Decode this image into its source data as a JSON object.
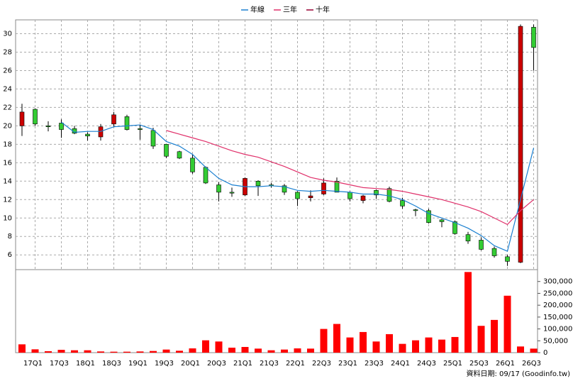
{
  "chart_data": {
    "type": "candlestick",
    "categories": [
      null,
      "17Q1",
      null,
      "17Q3",
      null,
      "18Q1",
      null,
      "18Q3",
      null,
      "19Q1",
      null,
      "19Q3",
      null,
      "20Q1",
      null,
      "20Q3",
      null,
      "21Q1",
      null,
      "21Q3",
      null,
      "22Q1",
      null,
      "22Q3",
      null,
      "23Q1",
      null,
      "23Q3",
      null,
      "24Q1",
      null,
      "24Q3",
      null,
      "25Q1",
      null,
      "25Q3",
      null,
      "26Q1",
      null,
      "26Q3"
    ],
    "open": [
      20.0,
      21.8,
      20.0,
      20.3,
      19.7,
      19.1,
      18.8,
      20.2,
      21.0,
      19.7,
      19.5,
      18.0,
      17.2,
      16.5,
      15.5,
      13.6,
      12.8,
      12.5,
      14.0,
      13.6,
      13.5,
      12.8,
      12.2,
      12.6,
      14.0,
      12.8,
      11.9,
      13.0,
      13.2,
      11.9,
      10.9,
      10.8,
      9.8,
      9.6,
      8.2,
      7.6,
      6.7,
      5.8,
      5.2,
      30.7
    ],
    "high": [
      22.4,
      21.9,
      20.5,
      20.7,
      20.0,
      19.3,
      20.2,
      21.5,
      21.2,
      20.1,
      19.8,
      18.0,
      17.3,
      16.9,
      15.6,
      13.9,
      13.3,
      14.4,
      14.1,
      13.8,
      13.7,
      12.9,
      13.0,
      14.3,
      14.4,
      12.9,
      12.5,
      13.1,
      13.4,
      12.2,
      11.0,
      11.0,
      9.9,
      9.7,
      8.5,
      7.9,
      6.9,
      6.0,
      31.0,
      31.0
    ],
    "low": [
      18.9,
      20.0,
      19.4,
      18.7,
      19.1,
      18.4,
      18.4,
      19.9,
      19.5,
      18.5,
      17.5,
      16.5,
      16.4,
      14.8,
      13.7,
      11.8,
      12.3,
      12.4,
      12.4,
      13.3,
      12.5,
      11.3,
      11.8,
      12.5,
      12.8,
      11.8,
      11.6,
      12.1,
      11.7,
      11.0,
      10.2,
      9.4,
      9.0,
      8.2,
      7.2,
      6.5,
      5.7,
      4.8,
      5.1,
      26.0
    ],
    "close": [
      21.5,
      20.2,
      19.9,
      19.6,
      19.2,
      18.9,
      19.9,
      21.2,
      19.6,
      19.6,
      17.8,
      16.7,
      16.5,
      15.0,
      13.8,
      12.8,
      12.7,
      14.3,
      13.5,
      13.5,
      12.8,
      12.1,
      12.4,
      13.8,
      12.8,
      12.1,
      12.4,
      12.5,
      11.8,
      11.3,
      10.8,
      9.5,
      9.6,
      8.3,
      7.5,
      6.6,
      5.9,
      5.3,
      30.8,
      28.5
    ],
    "up_color": "#cc0000",
    "down_color": "#33cc33",
    "series": [
      {
        "name": "年線",
        "color": "#1a7fd0",
        "values": [
          null,
          null,
          null,
          20.4,
          19.3,
          19.4,
          19.4,
          19.9,
          20.0,
          20.1,
          19.6,
          18.3,
          17.8,
          16.9,
          15.5,
          14.3,
          13.6,
          13.4,
          13.4,
          13.5,
          13.4,
          13.0,
          12.9,
          13.0,
          12.9,
          12.8,
          12.6,
          12.6,
          12.4,
          12.0,
          11.3,
          10.5,
          10.0,
          9.5,
          8.9,
          8.1,
          7.0,
          6.4,
          12.0,
          17.6
        ]
      },
      {
        "name": "三年",
        "color": "#e0306a",
        "values": [
          null,
          null,
          null,
          null,
          null,
          null,
          null,
          null,
          null,
          null,
          null,
          19.5,
          19.1,
          18.7,
          18.3,
          17.8,
          17.3,
          16.9,
          16.6,
          16.1,
          15.6,
          15.0,
          14.4,
          14.1,
          13.9,
          13.6,
          13.3,
          13.2,
          13.1,
          12.9,
          12.6,
          12.3,
          12.0,
          11.6,
          11.2,
          10.7,
          10.0,
          9.3,
          10.8,
          12.0
        ]
      },
      {
        "name": "十年",
        "color": "#990033",
        "values": [
          null,
          null,
          null,
          null,
          null,
          null,
          null,
          null,
          null,
          null,
          null,
          null,
          null,
          null,
          null,
          null,
          null,
          null,
          null,
          null,
          null,
          null,
          null,
          null,
          null,
          null,
          null,
          null,
          null,
          null,
          null,
          null,
          null,
          null,
          null,
          null,
          null,
          null,
          null,
          null
        ]
      }
    ],
    "volume": {
      "color": "#ff0000",
      "axis": "y2",
      "values": [
        35000,
        14000,
        6000,
        12000,
        10000,
        10000,
        5000,
        4000,
        4000,
        5000,
        7000,
        13000,
        8000,
        18000,
        52000,
        47000,
        21000,
        24000,
        17000,
        10000,
        13000,
        18000,
        17000,
        100000,
        121000,
        64000,
        87000,
        47000,
        78000,
        37000,
        52000,
        64000,
        55000,
        66000,
        340000,
        113000,
        138000,
        240000,
        26000,
        17000
      ]
    },
    "ylim": [
      4.4,
      31.5
    ],
    "yticks": [
      6,
      8,
      10,
      12,
      14,
      16,
      18,
      20,
      22,
      24,
      26,
      28,
      30
    ],
    "y2lim": [
      0,
      350000
    ],
    "y2ticks": [
      0,
      {
        "value": 50000,
        "label": "50,000"
      },
      {
        "value": 100000,
        "label": "100,000"
      },
      {
        "value": 150000,
        "label": "150,000"
      },
      {
        "value": 200000,
        "label": "200,000"
      },
      {
        "value": 250000,
        "label": "250,000"
      },
      {
        "value": 300000,
        "label": "300,000"
      }
    ],
    "grid": true,
    "legend": "top",
    "source_note": "資料日期: 09/17  (Goodinfo.tw)"
  }
}
